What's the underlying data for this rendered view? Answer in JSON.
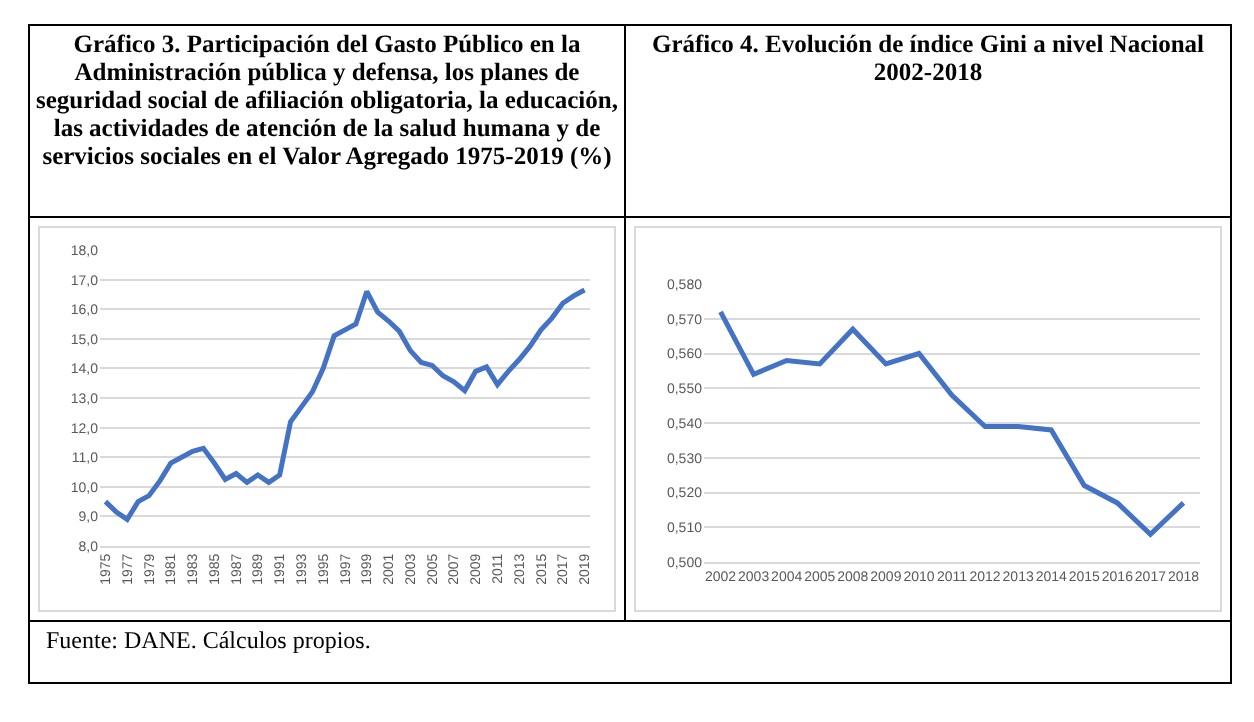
{
  "chart_data": [
    {
      "type": "line",
      "title": "Gráfico 3. Participación del Gasto Público en la Administración pública y defensa, los planes de seguridad social de afiliación obligatoria, la educación, las actividades de atención de la salud humana y de servicios sociales en el Valor Agregado 1975-2019 (%)",
      "x": [
        1975,
        1976,
        1977,
        1978,
        1979,
        1980,
        1981,
        1982,
        1983,
        1984,
        1985,
        1986,
        1987,
        1988,
        1989,
        1990,
        1991,
        1992,
        1993,
        1994,
        1995,
        1996,
        1997,
        1998,
        1999,
        2000,
        2001,
        2002,
        2003,
        2004,
        2005,
        2006,
        2007,
        2008,
        2009,
        2010,
        2011,
        2012,
        2013,
        2014,
        2015,
        2016,
        2017,
        2018,
        2019
      ],
      "values": [
        9.5,
        9.15,
        8.9,
        9.5,
        9.7,
        10.2,
        10.8,
        11.0,
        11.2,
        11.3,
        10.8,
        10.25,
        10.45,
        10.15,
        10.4,
        10.15,
        10.4,
        12.2,
        12.7,
        13.2,
        14.0,
        15.1,
        15.3,
        15.5,
        16.6,
        15.9,
        15.6,
        15.25,
        14.6,
        14.2,
        14.1,
        13.75,
        13.55,
        13.25,
        13.9,
        14.05,
        13.45,
        13.9,
        14.3,
        14.75,
        15.3,
        15.7,
        16.2,
        16.45,
        16.65
      ],
      "color": "#4472c4",
      "line_style": "solid",
      "marker": "none",
      "xlim": [
        1974.5,
        2019.5
      ],
      "xticks": [
        1975,
        1977,
        1979,
        1981,
        1983,
        1985,
        1987,
        1989,
        1991,
        1993,
        1995,
        1997,
        1999,
        2001,
        2003,
        2005,
        2007,
        2009,
        2011,
        2013,
        2015,
        2017,
        2019
      ],
      "ylim": [
        8,
        18
      ],
      "yticks": [
        {
          "value": 8,
          "label": "8,0"
        },
        {
          "value": 9,
          "label": "9,0"
        },
        {
          "value": 10,
          "label": "10,0"
        },
        {
          "value": 11,
          "label": "11,0"
        },
        {
          "value": 12,
          "label": "12,0"
        },
        {
          "value": 13,
          "label": "13,0"
        },
        {
          "value": 14,
          "label": "14,0"
        },
        {
          "value": 15,
          "label": "15,0"
        },
        {
          "value": 16,
          "label": "16,0"
        },
        {
          "value": 17,
          "label": "17,0"
        },
        {
          "value": 18,
          "label": "18,0"
        }
      ],
      "grid": "y",
      "annotations": [
        "Fuente: DANE. Cálculos propios."
      ]
    },
    {
      "type": "line",
      "title": "Gráfico 4. Evolución de índice Gini  a nivel Nacional\n2002-2018",
      "categories": [
        "2002",
        "2003",
        "2004",
        "2005",
        "2008",
        "2009",
        "2010",
        "2011",
        "2012",
        "2013",
        "2014",
        "2015",
        "2016",
        "2017",
        "2018"
      ],
      "values": [
        0.572,
        0.554,
        0.558,
        0.557,
        0.567,
        0.557,
        0.56,
        0.548,
        0.539,
        0.539,
        0.538,
        0.522,
        0.517,
        0.508,
        0.517
      ],
      "color": "#4472c4",
      "line_style": "solid",
      "marker": "none",
      "ylim": [
        0.5,
        0.58
      ],
      "yticks": [
        {
          "value": 0.5,
          "label": "0,500"
        },
        {
          "value": 0.51,
          "label": "0,510"
        },
        {
          "value": 0.52,
          "label": "0,520"
        },
        {
          "value": 0.53,
          "label": "0,530"
        },
        {
          "value": 0.54,
          "label": "0,540"
        },
        {
          "value": 0.55,
          "label": "0,550"
        },
        {
          "value": 0.56,
          "label": "0,560"
        },
        {
          "value": 0.57,
          "label": "0,570"
        },
        {
          "value": 0.58,
          "label": "0,580"
        }
      ],
      "grid": "y"
    }
  ]
}
